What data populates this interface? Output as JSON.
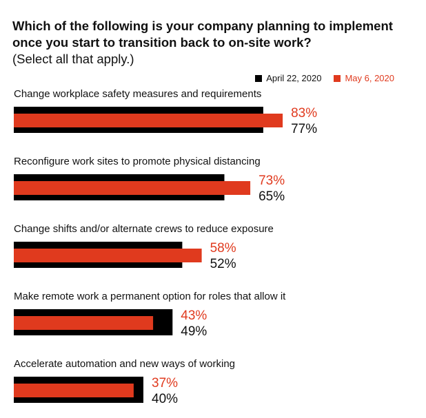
{
  "chart_data": {
    "type": "bar",
    "orientation": "horizontal",
    "title": "Which of the following is your company planning to implement once you start to transition back to on-site work?",
    "subtitle": "(Select all that apply.)",
    "categories": [
      "Change workplace safety measures and requirements",
      "Reconfigure work sites to promote physical distancing",
      "Change shifts and/or alternate crews to reduce exposure",
      "Make remote work a permanent option for roles that allow it",
      "Accelerate automation and new ways of working"
    ],
    "series": [
      {
        "name": "April 22, 2020",
        "color": "#000000",
        "values": [
          77,
          65,
          52,
          49,
          40
        ],
        "labels": [
          "77%",
          "65%",
          "52%",
          "49%",
          "40%"
        ]
      },
      {
        "name": "May 6, 2020",
        "color": "#e03a1e",
        "values": [
          83,
          73,
          58,
          43,
          37
        ],
        "labels": [
          "83%",
          "73%",
          "58%",
          "43%",
          "37%"
        ]
      }
    ],
    "xlim": [
      0,
      100
    ],
    "grid": false,
    "legend": "top-right"
  },
  "colors": {
    "series1": "#000000",
    "series2": "#e03a1e",
    "text": "#111111"
  }
}
